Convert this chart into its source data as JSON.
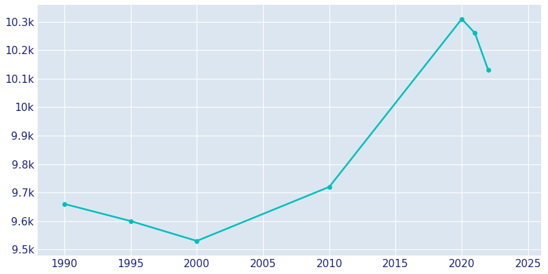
{
  "years": [
    1990,
    1995,
    2000,
    2010,
    2020,
    2021,
    2022
  ],
  "population": [
    9660,
    9600,
    9530,
    9720,
    10310,
    10260,
    10130
  ],
  "line_color": "#00BFBF",
  "background_color": "#dce6f0",
  "fig_background_color": "#ffffff",
  "tick_label_color": "#1a237e",
  "xlim": [
    1988,
    2026
  ],
  "ylim": [
    9480,
    10360
  ],
  "yticks": [
    9500,
    9600,
    9700,
    9800,
    9900,
    10000,
    10100,
    10200,
    10300
  ],
  "xticks": [
    1990,
    1995,
    2000,
    2005,
    2010,
    2015,
    2020,
    2025
  ],
  "line_width": 1.8,
  "marker_size": 4,
  "grid_color": "#ffffff",
  "grid_alpha": 1.0,
  "grid_linewidth": 0.8
}
